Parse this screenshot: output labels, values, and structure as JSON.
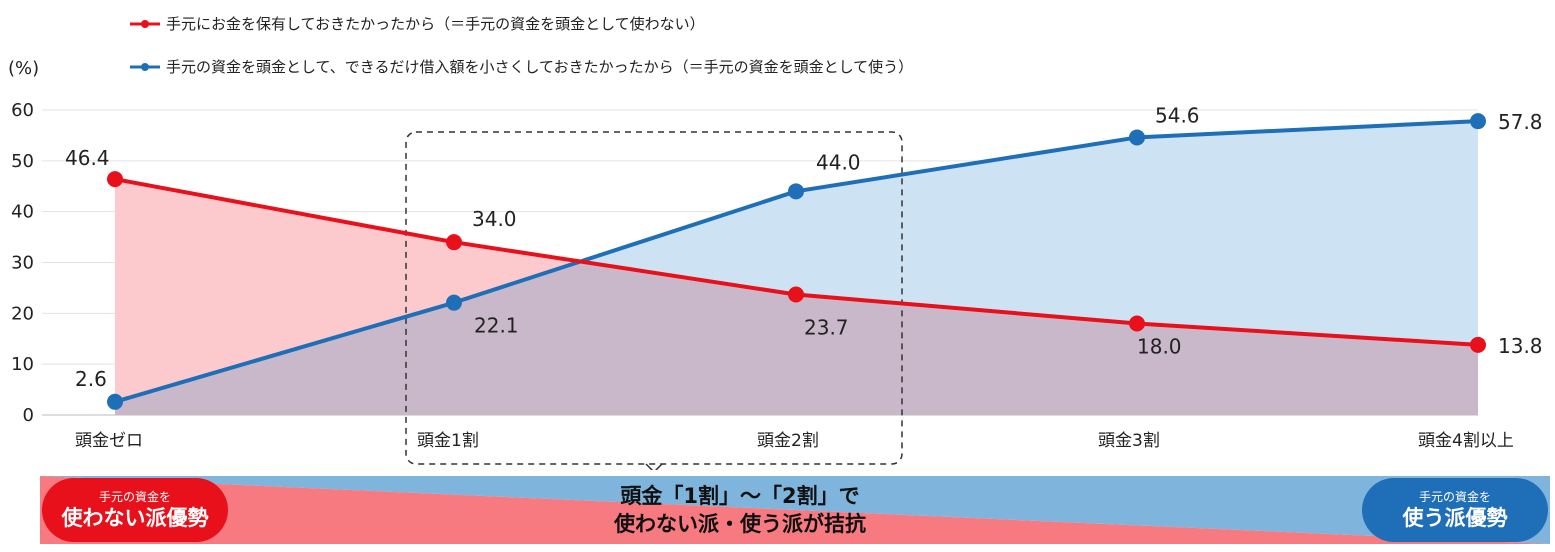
{
  "chart_data": {
    "type": "line",
    "title": "",
    "unit_label": "(%)",
    "xlabel": "",
    "ylabel": "",
    "ylim": [
      0,
      60
    ],
    "yticks": [
      0,
      10,
      20,
      30,
      40,
      50,
      60
    ],
    "grid": true,
    "legend_position": "top",
    "categories": [
      "頭金ゼロ",
      "頭金1割",
      "頭金2割",
      "頭金3割",
      "頭金4割以上"
    ],
    "series": [
      {
        "name": "手元にお金を保有しておきたかったから（＝手元の資金を頭金として使わない）",
        "color": "#e8101a",
        "fill": "#fcc9cc",
        "values": [
          46.4,
          34.0,
          23.7,
          18.0,
          13.8
        ],
        "labels": [
          "46.4",
          "34.0",
          "23.7",
          "18.0",
          "13.8"
        ]
      },
      {
        "name": "手元の資金を頭金として、できるだけ借入額を小さくしておきたかったから（＝手元の資金を頭金として使う）",
        "color": "#1f6fb8",
        "fill": "#cde2f2",
        "values": [
          2.6,
          22.1,
          44.0,
          54.6,
          57.8
        ],
        "labels": [
          "2.6",
          "22.1",
          "44.0",
          "54.6",
          "57.8"
        ]
      }
    ],
    "overlap_fill": "#c9b8c9",
    "annotation": {
      "highlight_range": [
        "頭金1割",
        "頭金2割"
      ],
      "center_line1": "頭金「1割」～「2割」で",
      "center_line2": "使わない派・使う派が拮抗",
      "left_small": "手元の資金を",
      "left_big": "使わない派優勢",
      "right_small": "手元の資金を",
      "right_big": "使う派優勢",
      "left_color": "#e8101a",
      "right_color": "#1f6fb8",
      "left_gradient": "#f67a7f",
      "right_gradient": "#7fb4dc"
    }
  }
}
